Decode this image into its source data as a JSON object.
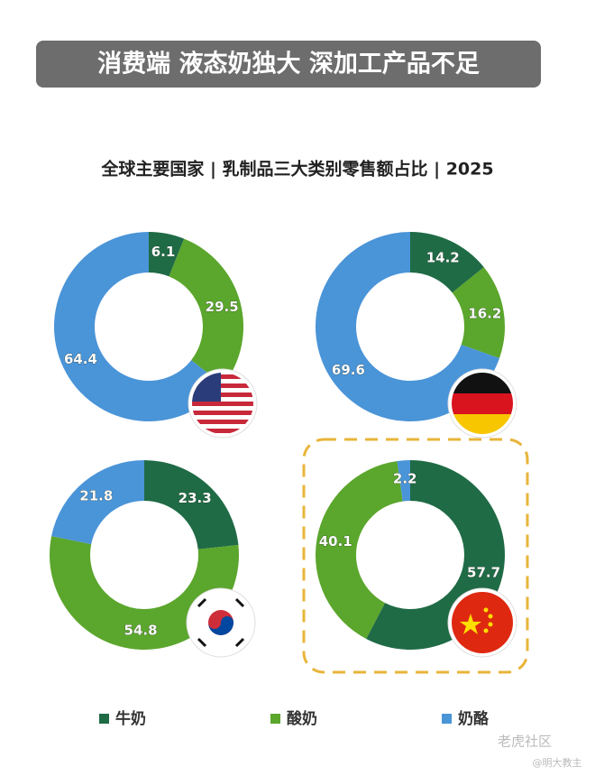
{
  "header": {
    "title": "消费端 液态奶独大 深加工产品不足"
  },
  "subtitle": "全球主要国家 | 乳制品三大类别零售额占比 | 2025",
  "legend": [
    {
      "name": "牛奶",
      "color": "#1f6b46"
    },
    {
      "name": "酸奶",
      "color": "#5ba62c"
    },
    {
      "name": "奶酪",
      "color": "#4a94d8"
    }
  ],
  "chart_data": [
    {
      "type": "pie",
      "values": [
        6.1,
        29.5,
        64.4
      ]
    },
    {
      "type": "pie",
      "values": [
        14.2,
        16.2,
        69.6
      ]
    },
    {
      "type": "pie",
      "values": [
        23.3,
        54.8,
        21.8
      ]
    },
    {
      "type": "pie",
      "values": [
        57.7,
        40.1,
        2.2
      ]
    }
  ],
  "watermark": {
    "brand": "老虎社区",
    "author": "@明大教主"
  }
}
